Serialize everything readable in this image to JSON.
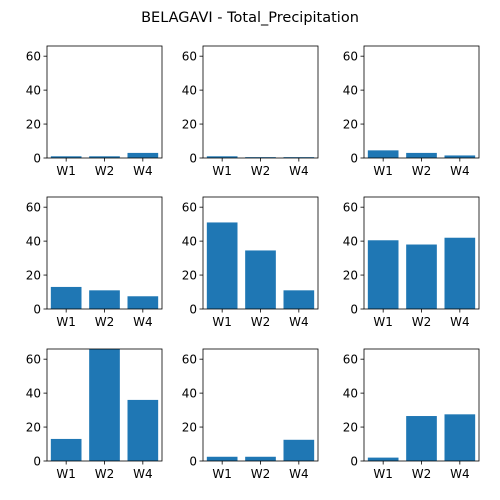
{
  "title": "BELAGAVI - Total_Precipitation",
  "colors": {
    "bar": "#1f77b4",
    "axis": "#000000",
    "background": "#ffffff"
  },
  "chart_data": [
    {
      "type": "bar",
      "categories": [
        "W1",
        "W2",
        "W4"
      ],
      "values": [
        1.0,
        1.0,
        3.0
      ],
      "ylim": [
        0,
        66
      ],
      "yticks": [
        0,
        20,
        40,
        60
      ],
      "grid": false
    },
    {
      "type": "bar",
      "categories": [
        "W1",
        "W2",
        "W4"
      ],
      "values": [
        1.0,
        0.5,
        0.5
      ],
      "ylim": [
        0,
        66
      ],
      "yticks": [
        0,
        20,
        40,
        60
      ],
      "grid": false
    },
    {
      "type": "bar",
      "categories": [
        "W1",
        "W2",
        "W4"
      ],
      "values": [
        4.5,
        3.0,
        1.5
      ],
      "ylim": [
        0,
        66
      ],
      "yticks": [
        0,
        20,
        40,
        60
      ],
      "grid": false
    },
    {
      "type": "bar",
      "categories": [
        "W1",
        "W2",
        "W4"
      ],
      "values": [
        13.0,
        11.0,
        7.5
      ],
      "ylim": [
        0,
        66
      ],
      "yticks": [
        0,
        20,
        40,
        60
      ],
      "grid": false
    },
    {
      "type": "bar",
      "categories": [
        "W1",
        "W2",
        "W4"
      ],
      "values": [
        51.0,
        34.5,
        11.0
      ],
      "ylim": [
        0,
        66
      ],
      "yticks": [
        0,
        20,
        40,
        60
      ],
      "grid": false
    },
    {
      "type": "bar",
      "categories": [
        "W1",
        "W2",
        "W4"
      ],
      "values": [
        40.5,
        38.0,
        42.0
      ],
      "ylim": [
        0,
        66
      ],
      "yticks": [
        0,
        20,
        40,
        60
      ],
      "grid": false
    },
    {
      "type": "bar",
      "categories": [
        "W1",
        "W2",
        "W4"
      ],
      "values": [
        13.0,
        66.0,
        36.0
      ],
      "ylim": [
        0,
        66
      ],
      "yticks": [
        0,
        20,
        40,
        60
      ],
      "grid": false
    },
    {
      "type": "bar",
      "categories": [
        "W1",
        "W2",
        "W4"
      ],
      "values": [
        2.5,
        2.5,
        12.5
      ],
      "ylim": [
        0,
        66
      ],
      "yticks": [
        0,
        20,
        40,
        60
      ],
      "grid": false
    },
    {
      "type": "bar",
      "categories": [
        "W1",
        "W2",
        "W4"
      ],
      "values": [
        2.0,
        26.5,
        27.5
      ],
      "ylim": [
        0,
        66
      ],
      "yticks": [
        0,
        20,
        40,
        60
      ],
      "grid": false
    }
  ]
}
